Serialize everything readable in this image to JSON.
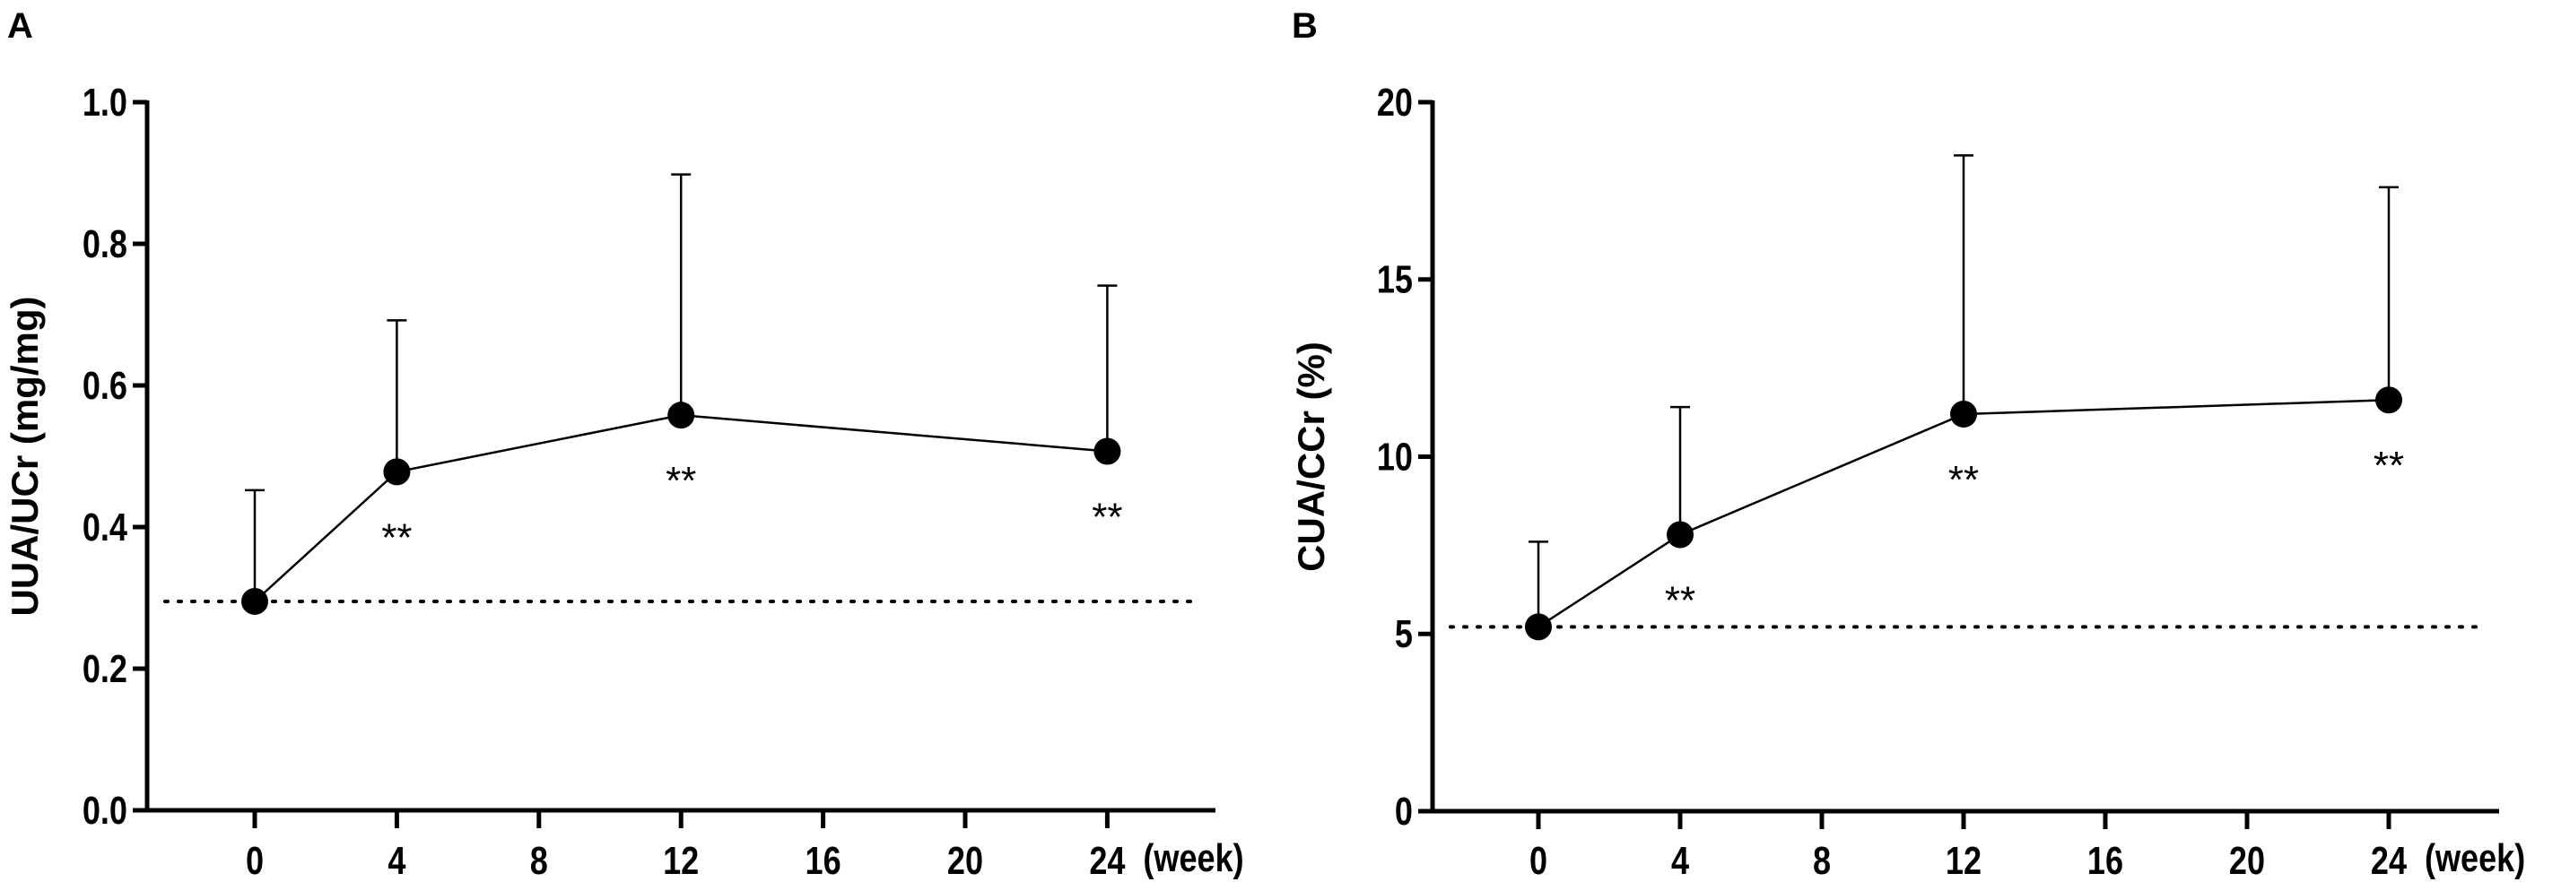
{
  "chart_data": [
    {
      "type": "line",
      "panel_label": "A",
      "ylabel": "UUA/UCr (mg/mg)",
      "xlabel": "(week)",
      "x": [
        0,
        4,
        12,
        24
      ],
      "values": [
        0.295,
        0.478,
        0.558,
        0.507
      ],
      "error_upper": [
        0.452,
        0.692,
        0.898,
        0.741
      ],
      "significance": [
        "",
        "**",
        "**",
        "**"
      ],
      "baseline_dotted": 0.295,
      "xticks": [
        0,
        4,
        8,
        12,
        16,
        20,
        24
      ],
      "yticks": [
        "0.0",
        "0.2",
        "0.4",
        "0.6",
        "0.8",
        "1.0"
      ],
      "ylim": [
        0,
        1.0
      ],
      "xlim": [
        -3,
        27
      ],
      "grid": false
    },
    {
      "type": "line",
      "panel_label": "B",
      "ylabel": "CUA/CCr (%)",
      "xlabel": "(week)",
      "x": [
        0,
        4,
        12,
        24
      ],
      "values": [
        5.2,
        7.8,
        11.2,
        11.6
      ],
      "error_upper": [
        7.6,
        11.4,
        18.5,
        17.6
      ],
      "significance": [
        "",
        "**",
        "**",
        "**"
      ],
      "baseline_dotted": 5.2,
      "xticks": [
        0,
        4,
        8,
        12,
        16,
        20,
        24
      ],
      "yticks": [
        "0",
        "5",
        "10",
        "15",
        "20"
      ],
      "ylim": [
        0,
        20
      ],
      "xlim": [
        -3,
        27
      ],
      "grid": false
    }
  ]
}
